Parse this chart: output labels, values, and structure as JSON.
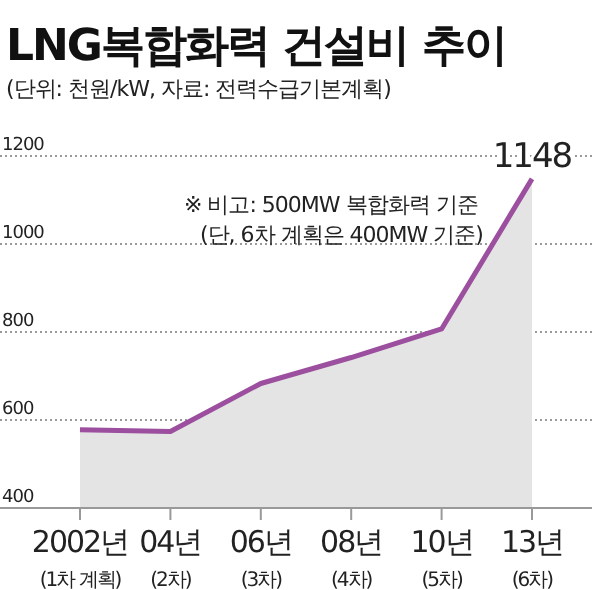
{
  "chart_data": {
    "type": "area",
    "title": "LNG복합화력 건설비 추이",
    "subtitle": "(단위: 천원/kW, 자료: 전력수급기본계획)",
    "categories": [
      "2002년\n(1차 계획)",
      "04년\n(2차)",
      "06년\n(3차)",
      "08년\n(4차)",
      "10년\n(5차)",
      "13년\n(6차)"
    ],
    "series": [
      {
        "color": "#9b4f9e",
        "values": [
          578,
          574,
          683,
          742,
          807,
          1148
        ],
        "value_labels": [
          null,
          null,
          null,
          null,
          null,
          "1148"
        ]
      }
    ],
    "ylim": [
      400,
      1200
    ],
    "yticks": [
      400,
      600,
      800,
      1000,
      1200
    ],
    "grid": "y",
    "annotations": [
      "※ 비고: 500MW 복합화력 기준",
      "(단, 6차 계획은 400MW 기준)"
    ]
  }
}
